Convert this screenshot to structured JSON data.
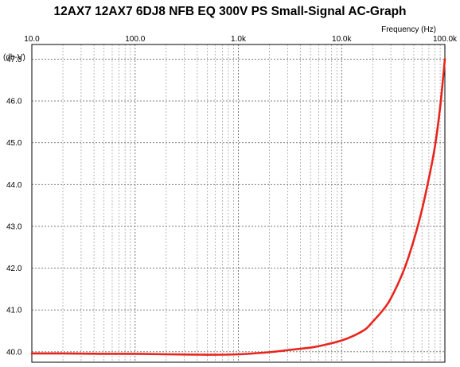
{
  "chart_data": {
    "type": "line",
    "title": "12AX7 12AX7 6DJ8 NFB EQ 300V PS Small-Signal AC-Graph",
    "xlabel": "Frequency   (Hz)",
    "ylabel": "(db-V)",
    "x_scale": "log",
    "xlim": [
      10,
      100000
    ],
    "ylim": [
      39.75,
      47.35
    ],
    "x_ticks": [
      {
        "value": 10,
        "label": "10.0"
      },
      {
        "value": 100,
        "label": "100.0"
      },
      {
        "value": 1000,
        "label": "1.0k"
      },
      {
        "value": 10000,
        "label": "10.0k"
      },
      {
        "value": 100000,
        "label": "100.0k"
      }
    ],
    "y_ticks": [
      {
        "value": 40,
        "label": "40.0"
      },
      {
        "value": 41,
        "label": "41.0"
      },
      {
        "value": 42,
        "label": "42.0"
      },
      {
        "value": 43,
        "label": "43.0"
      },
      {
        "value": 44,
        "label": "44.0"
      },
      {
        "value": 45,
        "label": "45.0"
      },
      {
        "value": 46,
        "label": "46.0"
      },
      {
        "value": 47,
        "label": "47.0"
      }
    ],
    "grid": true,
    "series": [
      {
        "color": "#e8251d",
        "x": [
          10,
          20,
          50,
          100,
          200,
          500,
          1000,
          2000,
          3000,
          5000,
          7000,
          10000,
          13000,
          17000,
          20000,
          25000,
          30000,
          40000,
          50000,
          60000,
          70000,
          80000,
          90000,
          100000
        ],
        "y": [
          39.96,
          39.96,
          39.95,
          39.95,
          39.94,
          39.93,
          39.94,
          39.99,
          40.04,
          40.1,
          40.17,
          40.27,
          40.38,
          40.54,
          40.72,
          40.99,
          41.28,
          41.95,
          42.67,
          43.4,
          44.15,
          44.9,
          45.85,
          47.0
        ]
      }
    ]
  }
}
